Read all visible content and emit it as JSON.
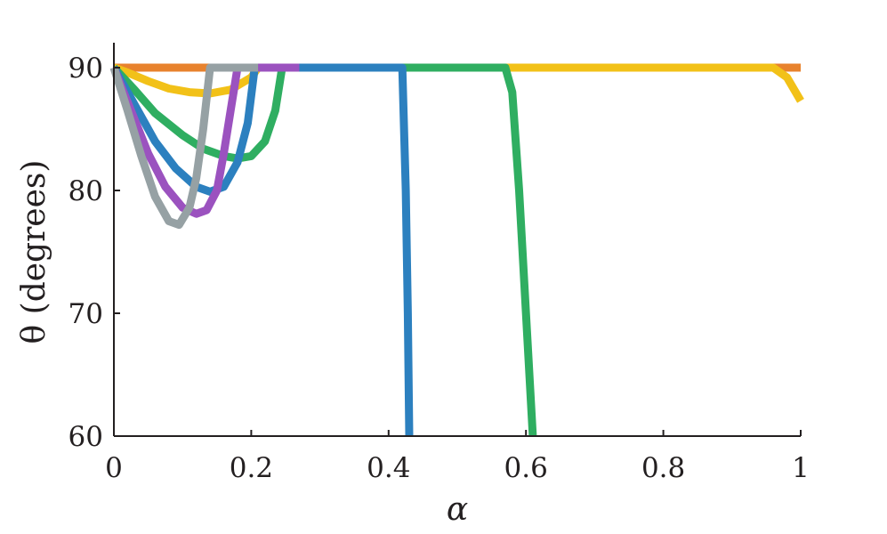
{
  "chart_data": {
    "type": "line",
    "xlabel": "α",
    "ylabel": "θ (degrees)",
    "xlim": [
      0,
      1
    ],
    "ylim": [
      60,
      90
    ],
    "xticks": [
      0,
      0.2,
      0.4,
      0.6,
      0.8,
      1
    ],
    "xtick_labels": [
      "0",
      "0.2",
      "0.4",
      "0.6",
      "0.8",
      "1"
    ],
    "yticks": [
      60,
      70,
      80,
      90
    ],
    "ytick_labels": [
      "60",
      "70",
      "80",
      "90"
    ],
    "grid": false,
    "legend": "none",
    "series": [
      {
        "color": "#e8822d",
        "x": [
          0,
          0.2,
          0.4,
          0.6,
          0.8,
          1.0
        ],
        "y": [
          90,
          90,
          90,
          90,
          90,
          90
        ]
      },
      {
        "color": "#f2c118",
        "x": [
          0,
          0.02,
          0.05,
          0.08,
          0.11,
          0.14,
          0.17,
          0.2,
          0.21,
          0.4,
          0.6,
          0.8,
          0.96,
          0.98,
          1.0
        ],
        "y": [
          90,
          89.6,
          88.9,
          88.3,
          88.0,
          87.9,
          88.2,
          89.2,
          90,
          90,
          90,
          90,
          90,
          89.2,
          87.3
        ]
      },
      {
        "color": "#2fae61",
        "x": [
          0,
          0.03,
          0.06,
          0.1,
          0.13,
          0.16,
          0.18,
          0.2,
          0.22,
          0.235,
          0.245,
          0.3,
          0.4,
          0.5,
          0.57,
          0.58,
          0.59,
          0.6,
          0.61
        ],
        "y": [
          90,
          88.2,
          86.3,
          84.5,
          83.4,
          82.8,
          82.6,
          82.8,
          84.0,
          86.5,
          90,
          90,
          90,
          90,
          90,
          88,
          80,
          70,
          60
        ]
      },
      {
        "color": "#2c80bf",
        "x": [
          0,
          0.03,
          0.06,
          0.09,
          0.12,
          0.14,
          0.16,
          0.18,
          0.195,
          0.205,
          0.3,
          0.4,
          0.42,
          0.425,
          0.428,
          0.43
        ],
        "y": [
          90,
          87.0,
          84.0,
          81.8,
          80.3,
          79.9,
          80.3,
          82.3,
          85.5,
          90,
          90,
          90,
          90,
          80,
          70,
          60
        ]
      },
      {
        "color": "#9b52bf",
        "x": [
          0,
          0.025,
          0.05,
          0.075,
          0.1,
          0.12,
          0.135,
          0.15,
          0.16,
          0.17,
          0.18,
          0.27
        ],
        "y": [
          90,
          86.5,
          83.0,
          80.3,
          78.6,
          78.1,
          78.4,
          80.0,
          83.0,
          86.5,
          90,
          90
        ]
      },
      {
        "color": "#96a1a4",
        "x": [
          0,
          0.02,
          0.04,
          0.06,
          0.08,
          0.095,
          0.11,
          0.12,
          0.13,
          0.14,
          0.15,
          0.21
        ],
        "y": [
          90,
          86.5,
          82.8,
          79.5,
          77.5,
          77.2,
          78.6,
          81.0,
          85.0,
          90,
          90,
          90
        ]
      }
    ]
  }
}
